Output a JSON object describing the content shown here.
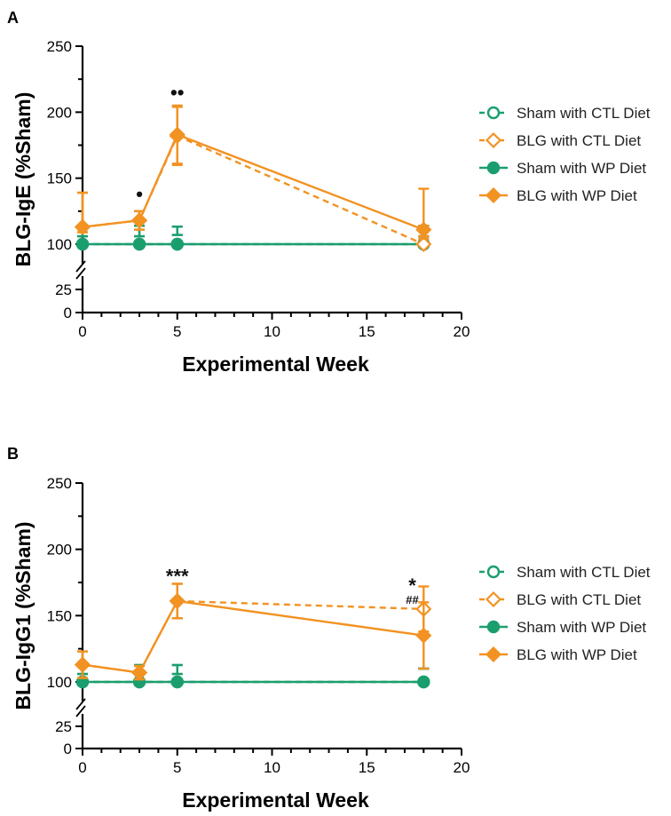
{
  "colors": {
    "sham": "#1b9e6e",
    "blg": "#f29222",
    "axis": "#000000"
  },
  "legend_entries": [
    {
      "label": "Sham with CTL Diet",
      "marker": "circle-open",
      "dashed": true,
      "group": "sham"
    },
    {
      "label": "BLG with CTL Diet",
      "marker": "diamond-open",
      "dashed": true,
      "group": "blg"
    },
    {
      "label": "Sham with WP Diet",
      "marker": "circle-filled",
      "dashed": false,
      "group": "sham"
    },
    {
      "label": "BLG with WP Diet",
      "marker": "diamond-filled",
      "dashed": false,
      "group": "blg"
    }
  ],
  "chart_data": [
    {
      "panel": "A",
      "type": "line",
      "title": "",
      "xlabel": "Experimental Week",
      "ylabel": "BLG-IgE (%Sham)",
      "xlim": [
        0,
        20
      ],
      "xticks": [
        "0",
        "5",
        "10",
        "15",
        "20"
      ],
      "yticks_upper": [
        "100",
        "150",
        "200",
        "250"
      ],
      "yticks_lower": [
        "0",
        "25"
      ],
      "axis_break": [
        25,
        100
      ],
      "series": [
        {
          "name": "Sham with CTL Diet",
          "x": [
            0,
            3,
            5,
            18
          ],
          "y": [
            100,
            100,
            100,
            100
          ],
          "err": [
            6,
            6,
            7,
            6
          ]
        },
        {
          "name": "BLG with CTL Diet",
          "x": [
            0,
            3,
            5,
            18
          ],
          "y": [
            113,
            118,
            182,
            100
          ],
          "err": [
            26,
            7,
            22,
            6
          ]
        },
        {
          "name": "Sham with WP Diet",
          "x": [
            0,
            3,
            5,
            18
          ],
          "y": [
            100,
            100,
            100,
            100
          ],
          "err": [
            6,
            6,
            7,
            6
          ]
        },
        {
          "name": "BLG with WP Diet",
          "x": [
            0,
            3,
            5,
            18
          ],
          "y": [
            113,
            118,
            183,
            111
          ],
          "err": [
            26,
            7,
            22,
            31
          ]
        }
      ],
      "annotations": [
        {
          "text": "•",
          "x": 3,
          "y": 137
        },
        {
          "text": "••",
          "x": 5,
          "y": 214
        }
      ]
    },
    {
      "panel": "B",
      "type": "line",
      "title": "",
      "xlabel": "Experimental Week",
      "ylabel": "BLG-IgG1 (%Sham)",
      "xlim": [
        0,
        20
      ],
      "xticks": [
        "0",
        "5",
        "10",
        "15",
        "20"
      ],
      "yticks_upper": [
        "100",
        "150",
        "200",
        "250"
      ],
      "yticks_lower": [
        "0",
        "25"
      ],
      "axis_break": [
        25,
        100
      ],
      "series": [
        {
          "name": "Sham with CTL Diet",
          "x": [
            0,
            3,
            5,
            18
          ],
          "y": [
            100,
            100,
            100,
            100
          ],
          "err": [
            6,
            6,
            6,
            10
          ]
        },
        {
          "name": "BLG with CTL Diet",
          "x": [
            0,
            3,
            5,
            18
          ],
          "y": [
            113,
            107,
            161,
            155
          ],
          "err": [
            10,
            5,
            13,
            17
          ]
        },
        {
          "name": "Sham with WP Diet",
          "x": [
            0,
            3,
            5,
            18
          ],
          "y": [
            100,
            100,
            100,
            100
          ],
          "err": [
            6,
            6,
            6,
            10
          ]
        },
        {
          "name": "BLG with WP Diet",
          "x": [
            0,
            3,
            5,
            18
          ],
          "y": [
            113,
            107,
            161,
            135
          ],
          "err": [
            10,
            5,
            13,
            25
          ]
        }
      ],
      "annotations": [
        {
          "text": "***",
          "x": 5,
          "y": 180
        },
        {
          "text": "*",
          "x": 17.4,
          "y": 173
        },
        {
          "text": "##",
          "x": 17.4,
          "y": 163
        }
      ]
    }
  ]
}
